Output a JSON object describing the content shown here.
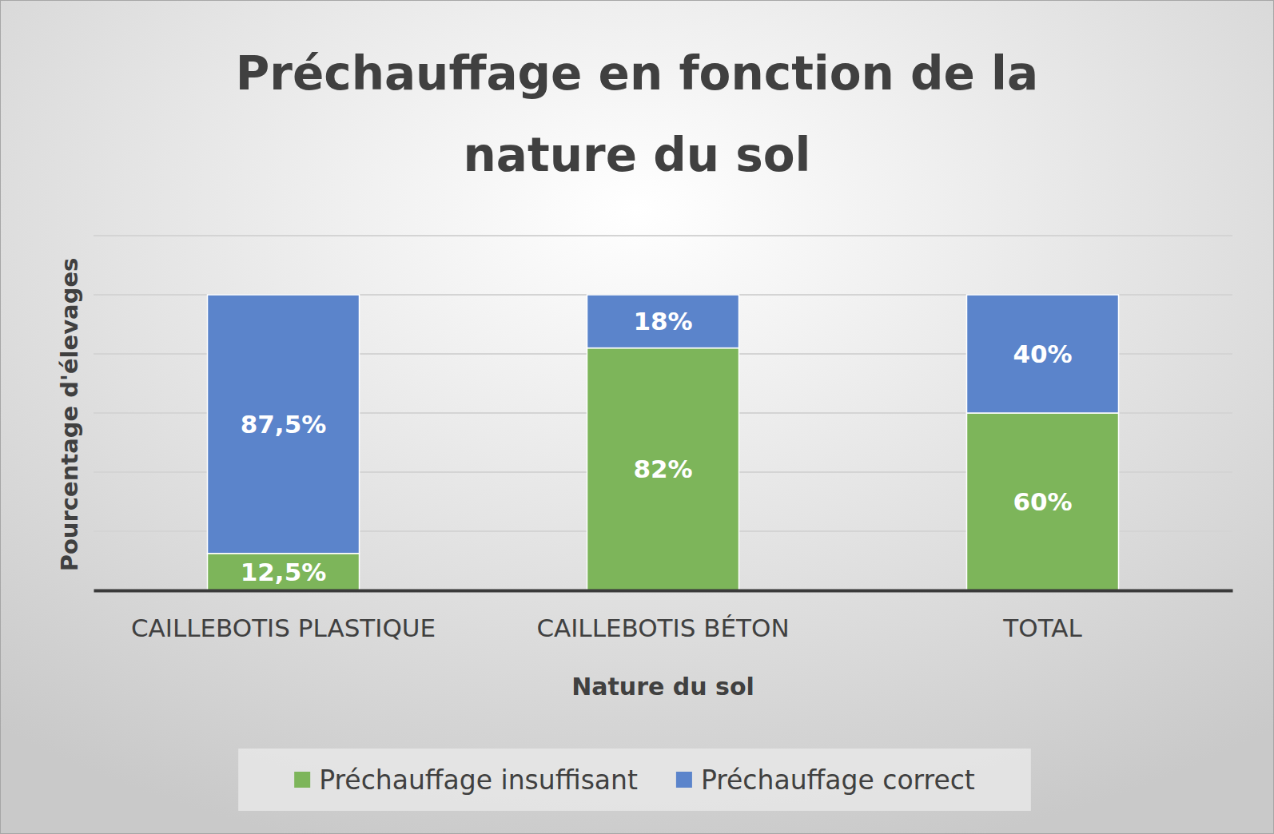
{
  "chart_data": {
    "type": "bar",
    "stacked": true,
    "title": "Préchauffage en fonction de la nature du sol",
    "x_label": "Nature du sol",
    "y_label": "Pourcentage d'élevages",
    "categories": [
      "CAILLEBOTIS PLASTIQUE",
      "CAILLEBOTIS BÉTON",
      "TOTAL"
    ],
    "series": [
      {
        "name": "Préchauffage insuffisant",
        "color": "#7db55a",
        "values": [
          12.5,
          82,
          60
        ],
        "value_labels": [
          "12,5%",
          "82%",
          "60%"
        ]
      },
      {
        "name": "Préchauffage correct",
        "color": "#5b84cb",
        "values": [
          87.5,
          18,
          40
        ],
        "value_labels": [
          "87,5%",
          "18%",
          "40%"
        ]
      }
    ],
    "ylim": [
      0,
      120
    ],
    "yticks": [
      0,
      20,
      40,
      60,
      80,
      100,
      120
    ],
    "grid": true,
    "data_labels": true,
    "tick_labels": "x",
    "legend": "bottom"
  }
}
